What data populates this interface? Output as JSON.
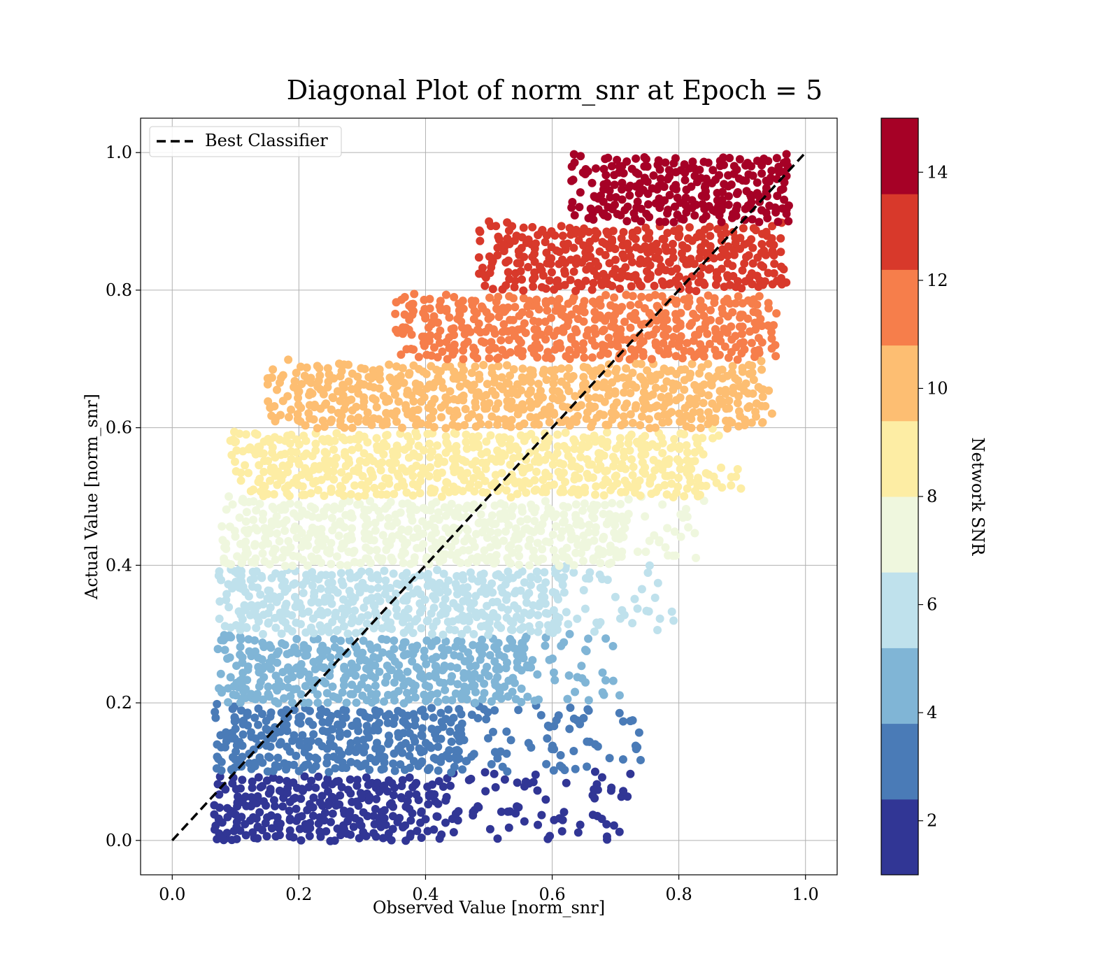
{
  "chart_data": {
    "type": "scatter",
    "title": "Diagonal Plot of norm_snr at Epoch = 5",
    "xlabel": "Observed Value [norm_snr]",
    "ylabel": "Actual Value [norm_snr]",
    "xlim": [
      -0.05,
      1.05
    ],
    "ylim": [
      -0.05,
      1.05
    ],
    "xticks": [
      0.0,
      0.2,
      0.4,
      0.6,
      0.8,
      1.0
    ],
    "yticks": [
      0.0,
      0.2,
      0.4,
      0.6,
      0.8,
      1.0
    ],
    "tick_labels": [
      "0.0",
      "0.2",
      "0.4",
      "0.6",
      "0.8",
      "1.0"
    ],
    "grid": true,
    "legend": {
      "placement": "top-left",
      "entries": [
        {
          "label": "Best Classifier",
          "style": "black dashed line"
        }
      ]
    },
    "reference_line": {
      "name": "Best Classifier",
      "x": [
        0.0,
        1.0
      ],
      "y": [
        0.0,
        1.0
      ]
    },
    "colorbar": {
      "label": "Network SNR",
      "range": [
        1,
        15
      ],
      "ticks": [
        2,
        4,
        6,
        8,
        10,
        12,
        14
      ],
      "tick_labels": [
        "2",
        "4",
        "6",
        "8",
        "10",
        "12",
        "14"
      ],
      "colormap": "RdYlBu_r"
    },
    "bands": [
      {
        "y_range": [
          0.0,
          0.1
        ],
        "x_core": [
          0.1,
          0.4
        ],
        "x_max": 0.73,
        "color": "#313695"
      },
      {
        "y_range": [
          0.1,
          0.2
        ],
        "x_core": [
          0.1,
          0.45
        ],
        "x_max": 0.74,
        "color": "#4a7bb7"
      },
      {
        "y_range": [
          0.2,
          0.3
        ],
        "x_core": [
          0.11,
          0.55
        ],
        "x_max": 0.71,
        "color": "#80b5d6"
      },
      {
        "y_range": [
          0.3,
          0.4
        ],
        "x_core": [
          0.11,
          0.6
        ],
        "x_max": 0.8,
        "color": "#bfe1ec"
      },
      {
        "y_range": [
          0.4,
          0.5
        ],
        "x_core": [
          0.12,
          0.7
        ],
        "x_max": 0.84,
        "color": "#eff7de"
      },
      {
        "y_range": [
          0.5,
          0.6
        ],
        "x_core": [
          0.14,
          0.83
        ],
        "x_max": 0.9,
        "color": "#fdeda4"
      },
      {
        "y_range": [
          0.6,
          0.7
        ],
        "x_core": [
          0.2,
          0.93
        ],
        "x_max": 0.95,
        "color": "#fdbe72"
      },
      {
        "y_range": [
          0.7,
          0.8
        ],
        "x_core": [
          0.4,
          0.94
        ],
        "x_max": 0.96,
        "color": "#f67e4b"
      },
      {
        "y_range": [
          0.8,
          0.9
        ],
        "x_core": [
          0.53,
          0.96
        ],
        "x_max": 0.97,
        "color": "#d8392b"
      },
      {
        "y_range": [
          0.9,
          1.0
        ],
        "x_core": [
          0.68,
          0.97
        ],
        "x_max": 0.97,
        "color": "#a60126"
      }
    ]
  }
}
